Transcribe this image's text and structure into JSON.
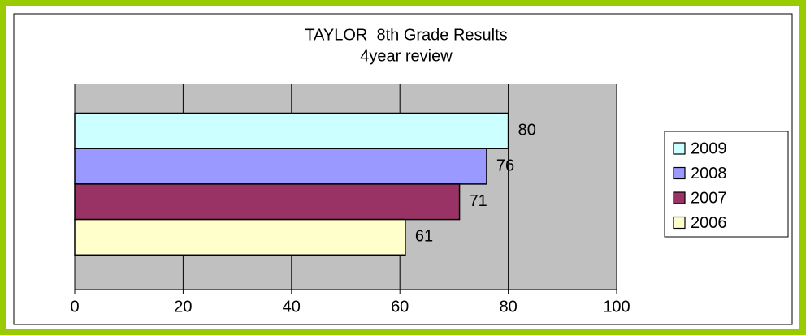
{
  "chart_data": {
    "type": "bar",
    "orientation": "horizontal",
    "title": "TAYLOR  8th Grade Results",
    "subtitle": "4year review",
    "series": [
      {
        "name": "2009",
        "color": "#ccffff",
        "values": [
          80
        ]
      },
      {
        "name": "2008",
        "color": "#9999ff",
        "values": [
          76
        ]
      },
      {
        "name": "2007",
        "color": "#993366",
        "values": [
          71
        ]
      },
      {
        "name": "2006",
        "color": "#ffffcc",
        "values": [
          61
        ]
      }
    ],
    "xlim": [
      0,
      100
    ],
    "xticks": [
      0,
      20,
      40,
      60,
      80,
      100
    ],
    "grid": true,
    "legend": "right"
  }
}
